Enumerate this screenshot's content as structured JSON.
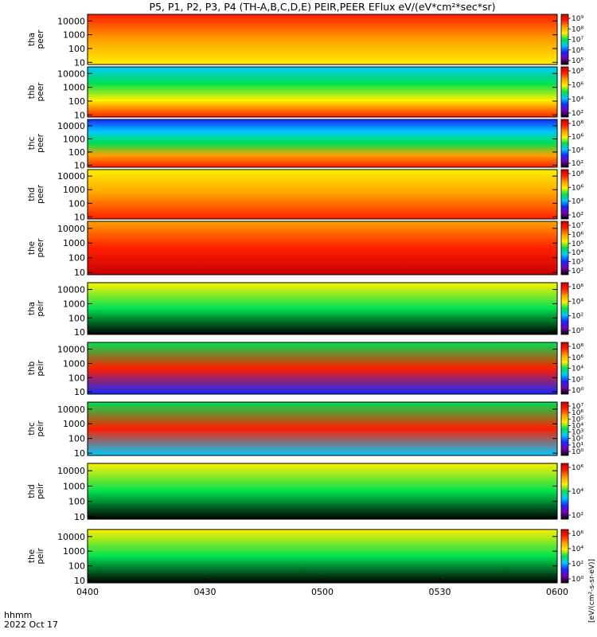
{
  "title": "P5, P1, P2, P3, P4 (TH-A,B,C,D,E) PEIR,PEER EFlux eV/(eV*cm²*sec*sr)",
  "time_label": "hhmm",
  "date_label": "2022 Oct 17",
  "colorbar_unit_label": "[eV/(cm²-s-sr-eV)]",
  "colors": {
    "black": "#000000",
    "purple": "#7a00b4",
    "blue": "#1428ff",
    "cyan": "#00c8ff",
    "green": "#00e150",
    "yellow": "#fff000",
    "orange": "#ffa000",
    "red": "#ff1e00",
    "dark_red": "#c80000"
  },
  "chart_data": {
    "type": "heatmap",
    "x_ticks": [
      "0400",
      "0430",
      "0500",
      "0530",
      "0600"
    ],
    "x_range": [
      "04:00",
      "06:00"
    ],
    "y_scale": "log",
    "y_unit": "eV",
    "y_ticks": [
      "10",
      "100",
      "1000",
      "10000"
    ],
    "panels": [
      {
        "probe": "tha",
        "species": "peer",
        "ylim": [
          7,
          30000
        ],
        "cb_ticks": [
          "10⁹",
          "10⁸",
          "10⁷",
          "10⁶",
          "10⁵"
        ],
        "colors": [
          "#ff1e00",
          "#ffa000",
          "#fff000"
        ]
      },
      {
        "probe": "thb",
        "species": "peer",
        "ylim": [
          7,
          30000
        ],
        "cb_ticks": [
          "10⁸",
          "10⁶",
          "10⁴",
          "10²"
        ],
        "colors": [
          "#00c8ff",
          "#00e150",
          "#fff000",
          "#ff1e00"
        ]
      },
      {
        "probe": "thc",
        "species": "peer",
        "ylim": [
          7,
          30000
        ],
        "cb_ticks": [
          "10⁸",
          "10⁶",
          "10⁴",
          "10²"
        ],
        "colors": [
          "#1428ff",
          "#00c8ff",
          "#00e150",
          "#ffa000",
          "#ff1e00"
        ]
      },
      {
        "probe": "thd",
        "species": "peer",
        "ylim": [
          7,
          30000
        ],
        "cb_ticks": [
          "10⁸",
          "10⁶",
          "10⁴",
          "10²"
        ],
        "colors": [
          "#fff000",
          "#ffa000",
          "#ff1e00"
        ]
      },
      {
        "probe": "the",
        "species": "peer",
        "ylim": [
          7,
          30000
        ],
        "cb_ticks": [
          "10⁷",
          "10⁶",
          "10⁵",
          "10⁴",
          "10³",
          "10²"
        ],
        "colors": [
          "#ffa000",
          "#ff1e00",
          "#c80000"
        ]
      },
      {
        "probe": "tha",
        "species": "peir",
        "ylim": [
          7,
          30000
        ],
        "cb_ticks": [
          "10⁶",
          "10⁴",
          "10²",
          "10⁰"
        ],
        "colors": [
          "#fff000",
          "#00e150",
          "#000000"
        ]
      },
      {
        "probe": "thb",
        "species": "peir",
        "ylim": [
          7,
          30000
        ],
        "cb_ticks": [
          "10⁸",
          "10⁶",
          "10⁴",
          "10²",
          "10⁰"
        ],
        "colors": [
          "#00e150",
          "#ff1e00",
          "#1428ff"
        ]
      },
      {
        "probe": "thc",
        "species": "peir",
        "ylim": [
          7,
          30000
        ],
        "cb_ticks": [
          "10⁷",
          "10⁶",
          "10⁵",
          "10⁴",
          "10³",
          "10²",
          "10¹",
          "10⁰"
        ],
        "colors": [
          "#00e150",
          "#ff1e00",
          "#00c8ff"
        ]
      },
      {
        "probe": "thd",
        "species": "peir",
        "ylim": [
          7,
          30000
        ],
        "cb_ticks": [
          "10⁶",
          "10⁴",
          "10²"
        ],
        "colors": [
          "#fff000",
          "#00e150",
          "#000000"
        ]
      },
      {
        "probe": "the",
        "species": "peir",
        "ylim": [
          7,
          30000
        ],
        "cb_ticks": [
          "10⁶",
          "10⁴",
          "10²",
          "10⁰"
        ],
        "colors": [
          "#fff000",
          "#00e150",
          "#000000"
        ]
      }
    ]
  }
}
